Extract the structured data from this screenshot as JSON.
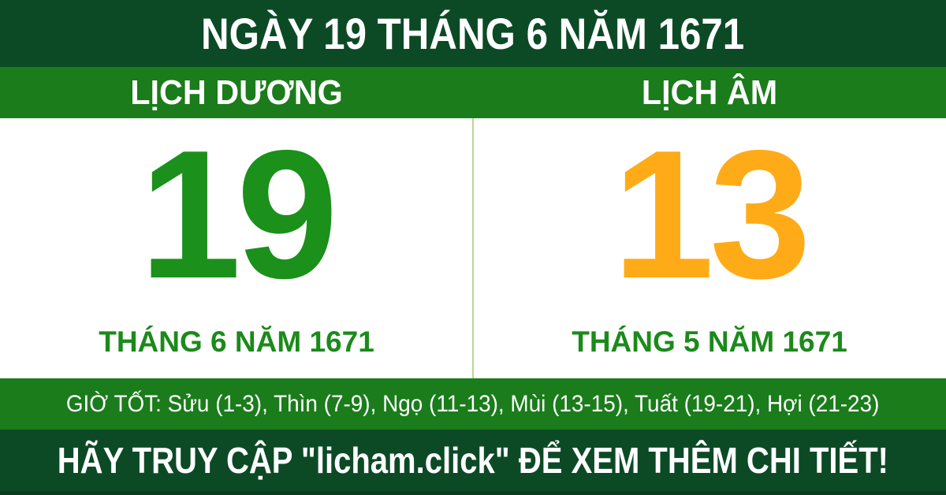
{
  "banner": {
    "title": "NGÀY 19 THÁNG 6 NĂM 1671"
  },
  "calendars": {
    "solar": {
      "label": "LỊCH DƯƠNG",
      "day": "19",
      "month_year": "THÁNG 6 NĂM 1671"
    },
    "lunar": {
      "label": "LỊCH ÂM",
      "day": "13",
      "month_year": "THÁNG 5 NĂM 1671"
    }
  },
  "good_hours": {
    "text": "GIỜ TỐT: Sửu (1-3), Thìn (7-9), Ngọ (11-13), Mùi (13-15), Tuất (19-21), Hợi (21-23)"
  },
  "footer": {
    "text": "HÃY TRUY CẬP \"licham.click\" ĐỂ XEM THÊM CHI TIẾT!"
  },
  "colors": {
    "dark_green": "#0c4a26",
    "green": "#1a7c1a",
    "solar_day": "#1b901b",
    "lunar_day": "#ffab17",
    "label_green": "#1b8a1b",
    "divider": "#b5d98f",
    "strip": "#073c1f"
  }
}
